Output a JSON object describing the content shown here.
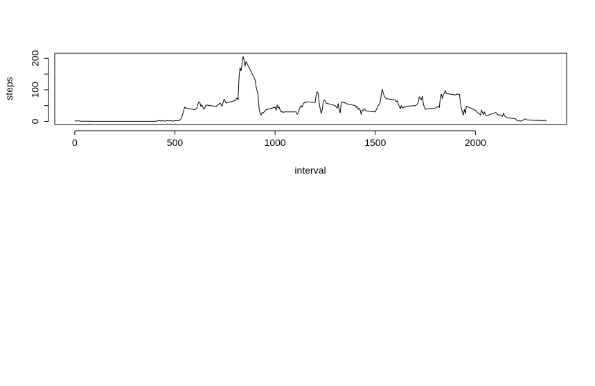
{
  "chart_data": {
    "type": "line",
    "title": "",
    "xlabel": "interval",
    "ylabel": "steps",
    "xlim": [
      -100,
      2455
    ],
    "ylim": [
      -10,
      216
    ],
    "x_ticks": [
      0,
      500,
      1000,
      1500,
      2000
    ],
    "y_ticks": [
      0,
      100,
      200
    ],
    "y_minor_ticks": [
      50,
      150
    ],
    "grid": false,
    "legend": "none",
    "line_color": "#000000",
    "series": [
      {
        "x": [
          0,
          25,
          30,
          50,
          100,
          200,
          300,
          400,
          405,
          410,
          420,
          430,
          440,
          450,
          460,
          470,
          480,
          490,
          500,
          510,
          515,
          520,
          525,
          530,
          535,
          540,
          545,
          550,
          555,
          600,
          610,
          615,
          620,
          625,
          630,
          635,
          640,
          645,
          650,
          655,
          700,
          705,
          710,
          715,
          720,
          725,
          730,
          735,
          740,
          745,
          750,
          755,
          800,
          805,
          810,
          815,
          820,
          825,
          830,
          835,
          840,
          845,
          850,
          855,
          900,
          905,
          910,
          915,
          920,
          925,
          930,
          935,
          940,
          945,
          950,
          955,
          1000,
          1005,
          1010,
          1015,
          1020,
          1025,
          1030,
          1035,
          1040,
          1045,
          1050,
          1055,
          1100,
          1105,
          1110,
          1115,
          1120,
          1125,
          1130,
          1135,
          1140,
          1145,
          1150,
          1155,
          1200,
          1205,
          1210,
          1215,
          1220,
          1225,
          1230,
          1235,
          1240,
          1245,
          1250,
          1255,
          1300,
          1305,
          1310,
          1315,
          1320,
          1325,
          1330,
          1335,
          1340,
          1345,
          1350,
          1355,
          1400,
          1405,
          1410,
          1415,
          1420,
          1425,
          1430,
          1435,
          1440,
          1445,
          1450,
          1455,
          1500,
          1505,
          1510,
          1515,
          1520,
          1525,
          1530,
          1535,
          1540,
          1545,
          1550,
          1555,
          1600,
          1605,
          1610,
          1615,
          1620,
          1625,
          1630,
          1635,
          1640,
          1645,
          1650,
          1655,
          1700,
          1705,
          1710,
          1715,
          1720,
          1725,
          1730,
          1735,
          1740,
          1745,
          1750,
          1755,
          1800,
          1805,
          1810,
          1815,
          1820,
          1825,
          1830,
          1835,
          1840,
          1845,
          1850,
          1855,
          1900,
          1905,
          1910,
          1915,
          1920,
          1925,
          1930,
          1935,
          1940,
          1945,
          1950,
          1955,
          2000,
          2005,
          2010,
          2015,
          2020,
          2025,
          2030,
          2035,
          2040,
          2045,
          2050,
          2055,
          2100,
          2105,
          2110,
          2115,
          2120,
          2125,
          2130,
          2135,
          2140,
          2145,
          2150,
          2155,
          2200,
          2205,
          2210,
          2215,
          2220,
          2225,
          2230,
          2235,
          2240,
          2245,
          2250,
          2255,
          2300,
          2305,
          2310,
          2315,
          2320,
          2325,
          2330,
          2335,
          2340,
          2345,
          2350,
          2355
        ],
        "y": [
          1.5,
          1.5,
          0.5,
          0.5,
          0,
          0,
          0,
          0,
          1,
          0.5,
          3,
          1,
          2,
          0.5,
          3,
          1.5,
          2,
          1,
          2,
          2,
          2,
          3,
          4,
          8,
          15,
          26,
          38,
          46,
          42,
          37,
          44,
          55,
          62,
          58,
          47,
          52,
          45,
          38,
          44,
          52,
          48,
          46,
          50,
          52,
          55,
          58,
          54,
          48,
          60,
          70,
          65,
          58,
          66,
          70,
          74,
          68,
          140,
          170,
          160,
          180,
          206,
          195,
          175,
          190,
          132,
          110,
          98,
          82,
          42,
          25,
          20,
          28,
          26,
          30,
          33,
          37,
          45,
          35,
          52,
          42,
          46,
          36,
          30,
          32,
          28,
          30,
          30,
          30,
          30,
          30,
          22,
          27,
          37,
          45,
          50,
          45,
          55,
          60,
          58,
          62,
          60,
          84,
          94,
          88,
          60,
          40,
          25,
          35,
          60,
          68,
          65,
          58,
          50,
          45,
          42,
          56,
          35,
          27,
          58,
          62,
          60,
          58,
          60,
          56,
          50,
          44,
          48,
          38,
          42,
          35,
          22,
          36,
          34,
          40,
          36,
          33,
          30,
          37,
          44,
          50,
          55,
          62,
          85,
          102,
          90,
          80,
          75,
          72,
          68,
          62,
          66,
          55,
          48,
          40,
          50,
          42,
          44,
          46,
          45,
          48,
          50,
          52,
          55,
          62,
          78,
          72,
          68,
          80,
          56,
          45,
          38,
          40,
          42,
          44,
          46,
          48,
          44,
          78,
          86,
          72,
          85,
          90,
          98,
          88,
          84,
          86,
          86,
          86,
          86,
          60,
          40,
          30,
          20,
          38,
          25,
          48,
          35,
          32,
          28,
          26,
          24,
          20,
          36,
          28,
          22,
          30,
          20,
          18,
          28,
          26,
          22,
          20,
          21,
          20,
          18,
          16,
          26,
          18,
          15,
          12,
          8,
          4,
          3,
          2,
          1.5,
          1,
          1.5,
          3,
          5,
          6,
          8,
          5,
          3,
          2.5,
          4,
          3,
          2,
          3,
          2.5,
          1.5,
          3,
          4,
          1.5,
          1.5
        ]
      }
    ]
  }
}
